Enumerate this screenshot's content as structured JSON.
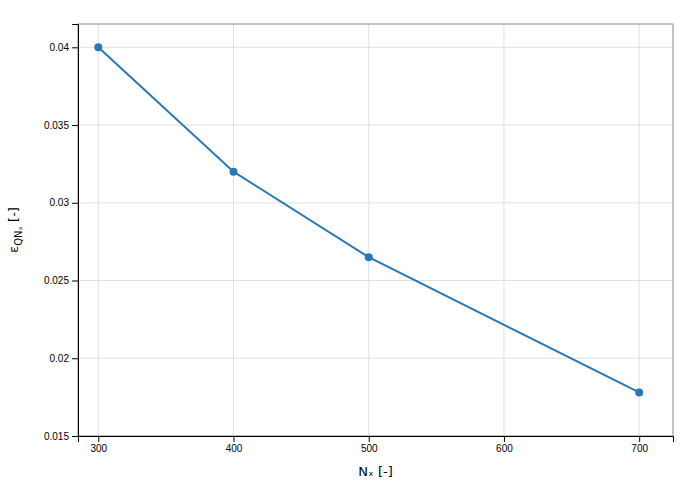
{
  "chart_data": {
    "type": "line",
    "xlabel": "Nₓ [-]",
    "ylabel": "εQNₓ [-]",
    "x": [
      300,
      400,
      500,
      700
    ],
    "values": [
      0.04,
      0.032,
      0.0265,
      0.0178
    ],
    "color": "#2878b5",
    "marker": "circle",
    "xlim": [
      285,
      725
    ],
    "ylim": [
      0.015,
      0.0415
    ],
    "xticks": [
      300,
      400,
      500,
      600,
      700
    ],
    "yticks": [
      0.015,
      0.02,
      0.025,
      0.03,
      0.035,
      0.04
    ],
    "grid": true
  }
}
